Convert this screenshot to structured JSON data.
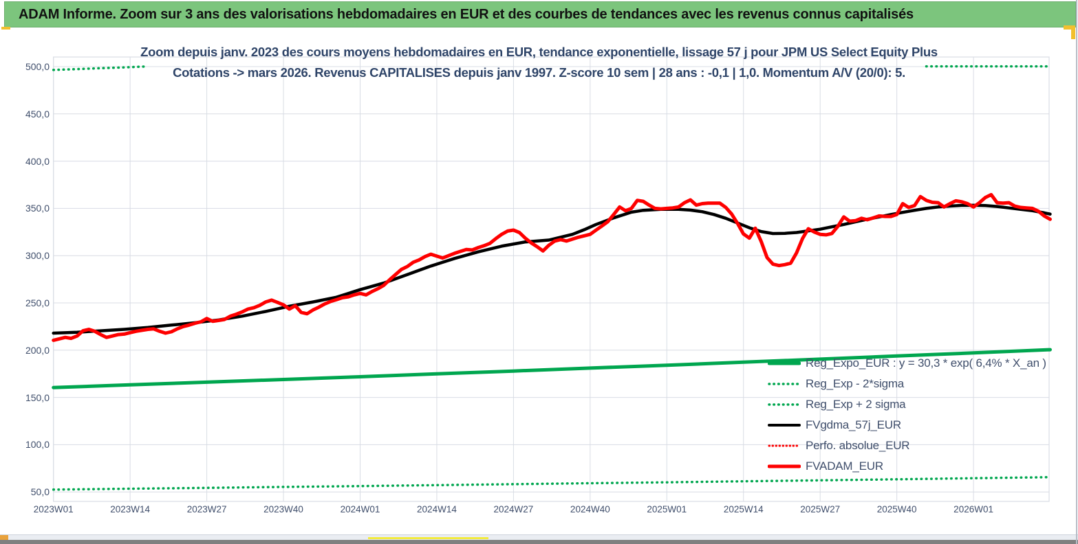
{
  "header": {
    "title": "ADAM Informe. Zoom sur 3 ans des valorisations hebdomadaires en EUR et des courbes de tendances avec les revenus connus capitalisés"
  },
  "chart": {
    "title_line1": "Zoom depuis janv. 2023 des cours moyens hebdomadaires en EUR, tendance exponentielle, lissage 57 j pour JPM US Select Equity Plus",
    "title_line2": "Cotations -> mars 2026. Revenus CAPITALISES depuis janv 1997. Z-score 10 sem | 28 ans : -0,1 | 1,0. Momentum A/V (20/0): 5."
  },
  "colors": {
    "header_bg": "#7CC57D",
    "green": "#00A64F",
    "red": "#FE0000",
    "black": "#000000",
    "grid": "#D8DCE4",
    "text_slate": "#3F4E6B",
    "title_navy": "#2E4468",
    "yellow_accent": "#F2C02E",
    "bottom_bar": "#808080"
  },
  "legend": {
    "position": "inside-right",
    "items": [
      {
        "label": "Reg_Expo_EUR : y = 30,3 * exp( 6,4% *  X_an )",
        "swatch": "green-solid"
      },
      {
        "label": "Reg_Exp - 2*sigma",
        "swatch": "green-dotted"
      },
      {
        "label": "Reg_Exp + 2 sigma",
        "swatch": "green-dotted"
      },
      {
        "label": "FVgdma_57j_EUR",
        "swatch": "black-solid"
      },
      {
        "label": "Perfo. absolue_EUR",
        "swatch": "red-dotted"
      },
      {
        "label": "FVADAM_EUR",
        "swatch": "red-solid"
      }
    ]
  },
  "chart_data": {
    "type": "line",
    "title_line1": "Zoom depuis janv. 2023 des cours moyens hebdomadaires en EUR, tendance exponentielle, lissage 57 j pour JPM US Select Equity Plus",
    "title_line2": "Cotations -> mars 2026. Revenus CAPITALISES depuis janv 1997. Z-score 10 sem | 28 ans : -0,1 | 1,0. Momentum A/V (20/0): 5.",
    "grid": true,
    "legend_position": "inside-right",
    "x_axis": {
      "unit": "ISO week (index 0 = 2023W01, weekly data to mars 2026)",
      "tick_week_indices": [
        0,
        13,
        26,
        39,
        52,
        65,
        78,
        91,
        104,
        117,
        130,
        143,
        156
      ],
      "tick_labels": [
        "2023W01",
        "2023W14",
        "2023W27",
        "2023W40",
        "2024W01",
        "2024W14",
        "2024W27",
        "2024W40",
        "2025W01",
        "2025W14",
        "2025W27",
        "2025W40",
        "2026W01"
      ]
    },
    "y_axis": {
      "tick_values": [
        500,
        450,
        400,
        350,
        300,
        250,
        200,
        150,
        100,
        50
      ],
      "tick_labels": [
        "500,0",
        "450,0",
        "400,0",
        "350,0",
        "300,0",
        "250,0",
        "200,0",
        "150,0",
        "100,0",
        "50,0"
      ],
      "displayed_range": [
        40,
        510
      ]
    },
    "series": [
      {
        "name": "Reg_Expo_EUR : y = 30,3 * exp( 6,4% *  X_an )",
        "color": "green",
        "style": "solid",
        "width": 5,
        "points": [
          [
            0,
            160.5
          ],
          [
            13,
            163.3
          ],
          [
            26,
            166.1
          ],
          [
            39,
            169.0
          ],
          [
            52,
            171.9
          ],
          [
            65,
            174.9
          ],
          [
            78,
            177.9
          ],
          [
            91,
            181.0
          ],
          [
            104,
            184.1
          ],
          [
            117,
            187.3
          ],
          [
            130,
            190.5
          ],
          [
            143,
            193.8
          ],
          [
            156,
            197.1
          ],
          [
            169,
            200.5
          ]
        ]
      },
      {
        "name": "Reg_Exp - 2*sigma",
        "color": "green",
        "style": "dotted",
        "width": 3.5,
        "points": [
          [
            0,
            52.5
          ],
          [
            13,
            53.4
          ],
          [
            26,
            54.3
          ],
          [
            39,
            55.3
          ],
          [
            52,
            56.2
          ],
          [
            65,
            57.2
          ],
          [
            78,
            58.2
          ],
          [
            91,
            59.2
          ],
          [
            104,
            60.2
          ],
          [
            117,
            61.3
          ],
          [
            130,
            62.3
          ],
          [
            143,
            63.4
          ],
          [
            156,
            64.5
          ],
          [
            169,
            65.6
          ]
        ]
      },
      {
        "name": "Reg_Exp + 2 sigma",
        "color": "green",
        "style": "dotted",
        "width": 3.5,
        "visible_segments": [
          [
            [
              0,
              496.5
            ],
            [
              4,
              497.4
            ],
            [
              8,
              498.3
            ],
            [
              12,
              499.2
            ],
            [
              16,
              500.2
            ]
          ],
          [
            [
              148,
              500.3
            ],
            [
              169,
              500.3
            ]
          ]
        ]
      },
      {
        "name": "FVgdma_57j_EUR",
        "color": "black",
        "style": "solid",
        "width": 4.5,
        "points": [
          [
            0,
            218
          ],
          [
            4,
            219
          ],
          [
            8,
            220.5
          ],
          [
            12,
            222
          ],
          [
            16,
            224
          ],
          [
            20,
            226.5
          ],
          [
            24,
            229
          ],
          [
            28,
            232
          ],
          [
            32,
            236
          ],
          [
            36,
            241
          ],
          [
            40,
            246.5
          ],
          [
            44,
            251
          ],
          [
            48,
            256
          ],
          [
            52,
            264
          ],
          [
            56,
            271
          ],
          [
            60,
            280
          ],
          [
            64,
            289
          ],
          [
            68,
            297
          ],
          [
            72,
            304
          ],
          [
            76,
            310
          ],
          [
            80,
            314.5
          ],
          [
            84,
            316.5
          ],
          [
            88,
            322.5
          ],
          [
            90,
            327.5
          ],
          [
            92,
            333
          ],
          [
            95,
            340
          ],
          [
            98,
            346
          ],
          [
            100,
            348
          ],
          [
            103,
            349
          ],
          [
            106,
            349
          ],
          [
            108,
            348.2
          ],
          [
            110,
            346.5
          ],
          [
            112,
            343.5
          ],
          [
            114,
            339.5
          ],
          [
            116,
            334.5
          ],
          [
            118,
            329.5
          ],
          [
            120,
            325.5
          ],
          [
            122,
            323.4
          ],
          [
            124,
            323.6
          ],
          [
            126,
            324.5
          ],
          [
            128,
            326.2
          ],
          [
            130,
            328
          ],
          [
            132,
            330.5
          ],
          [
            134,
            333
          ],
          [
            136,
            335.8
          ],
          [
            138,
            338.5
          ],
          [
            140,
            341
          ],
          [
            142,
            343.5
          ],
          [
            144,
            345.8
          ],
          [
            146,
            348
          ],
          [
            148,
            350
          ],
          [
            150,
            351.5
          ],
          [
            152,
            352.5
          ],
          [
            154,
            353.2
          ],
          [
            156,
            353.3
          ],
          [
            158,
            353
          ],
          [
            160,
            352
          ],
          [
            162,
            350.5
          ],
          [
            164,
            349
          ],
          [
            166,
            347.5
          ],
          [
            168,
            345.3
          ],
          [
            169,
            344
          ]
        ]
      },
      {
        "name": "Perfo. absolue_EUR",
        "color": "red",
        "style": "dotted",
        "width": 2.5,
        "coincident_with": "FVADAM_EUR"
      },
      {
        "name": "FVADAM_EUR",
        "color": "red",
        "style": "solid",
        "width": 5,
        "week_start": 0,
        "values_weekly": [
          210.5,
          212,
          213.5,
          212.5,
          215,
          220.5,
          222,
          220,
          216.5,
          213.5,
          215,
          216.5,
          217,
          218.5,
          220,
          221,
          222,
          222.5,
          220,
          218,
          219.5,
          222.5,
          225,
          226.5,
          228.5,
          230,
          233.5,
          230.5,
          231.5,
          232.5,
          236,
          238,
          240.5,
          243.5,
          245,
          247.5,
          251,
          253,
          250.5,
          248,
          243.5,
          247,
          240,
          238.5,
          242.5,
          245.5,
          249,
          251.5,
          253.5,
          255.5,
          256.5,
          258.5,
          260,
          258.5,
          262,
          265,
          268.5,
          274.5,
          280,
          285.5,
          288.5,
          293,
          295.5,
          299,
          301.5,
          299.5,
          297.5,
          300,
          302.5,
          304.5,
          306.5,
          306,
          308.5,
          310.5,
          313,
          318,
          322.5,
          326,
          327,
          324.5,
          318.5,
          313.5,
          309.5,
          305,
          311,
          315.5,
          317,
          315.5,
          317.5,
          319.5,
          321,
          322.5,
          327,
          331.5,
          336,
          343.5,
          351.5,
          347.5,
          350,
          358.5,
          357.5,
          353.5,
          350,
          349.5,
          350,
          350.5,
          351.5,
          356,
          359,
          353.5,
          355,
          355.5,
          355.5,
          355.5,
          351,
          344,
          334,
          323,
          318.5,
          329,
          315,
          298,
          291,
          289.5,
          290.5,
          292,
          303,
          318,
          328.5,
          325,
          322.5,
          322,
          323.5,
          331,
          341,
          336.5,
          337,
          339.5,
          338,
          340,
          342,
          341.5,
          341.5,
          343.5,
          355,
          351,
          353,
          362.5,
          358.5,
          356.5,
          356,
          351.5,
          355,
          358,
          357,
          355,
          351.5,
          356,
          361.5,
          364.5,
          356,
          355.5,
          356,
          352.5,
          351,
          350.5,
          350,
          347,
          342,
          338.5
        ]
      }
    ]
  }
}
